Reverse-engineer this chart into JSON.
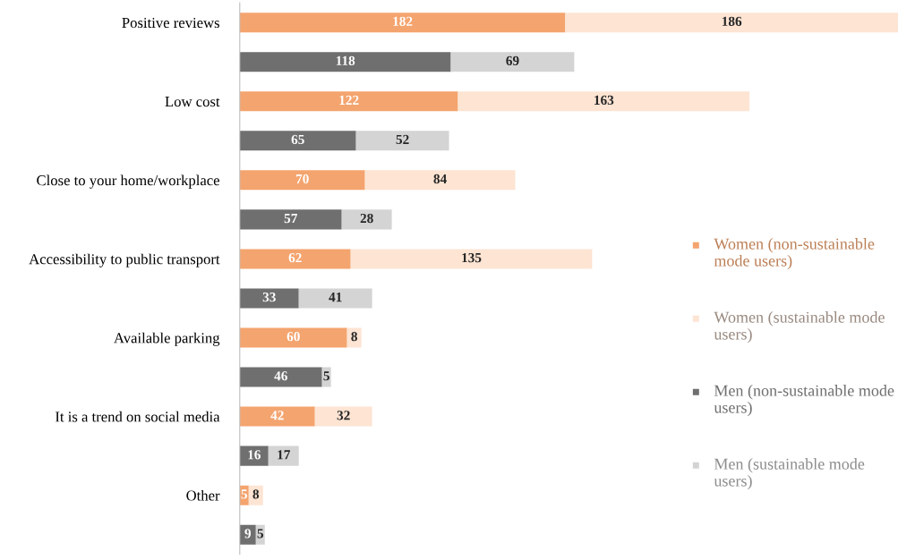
{
  "chart_data": {
    "type": "bar",
    "orientation": "horizontal",
    "stacked": true,
    "data_labels": true,
    "legend": "right",
    "grid": false,
    "categories": [
      "Positive reviews",
      null,
      "Low cost",
      null,
      "Close to your home/workplace",
      null,
      "Accessibility to public transport",
      null,
      "Available parking",
      null,
      "It is a trend on social media",
      null,
      "Other",
      null
    ],
    "series": [
      {
        "name": "Women (non-sustainable mode users)",
        "color": "#f4a46e",
        "values": [
          182,
          null,
          122,
          null,
          70,
          null,
          62,
          null,
          60,
          null,
          42,
          null,
          5,
          null
        ]
      },
      {
        "name": "Women (sustainable mode users)",
        "color": "#fde4d3",
        "values": [
          186,
          null,
          163,
          null,
          84,
          null,
          135,
          null,
          8,
          null,
          32,
          null,
          8,
          null
        ]
      },
      {
        "name": "Men (non-sustainable mode users)",
        "color": "#6f6f6f",
        "values": [
          null,
          118,
          null,
          65,
          null,
          57,
          null,
          33,
          null,
          46,
          null,
          16,
          null,
          9
        ]
      },
      {
        "name": "Men (sustainable mode users)",
        "color": "#d4d4d4",
        "values": [
          null,
          69,
          null,
          52,
          null,
          28,
          null,
          41,
          null,
          5,
          null,
          17,
          null,
          5
        ]
      }
    ]
  }
}
